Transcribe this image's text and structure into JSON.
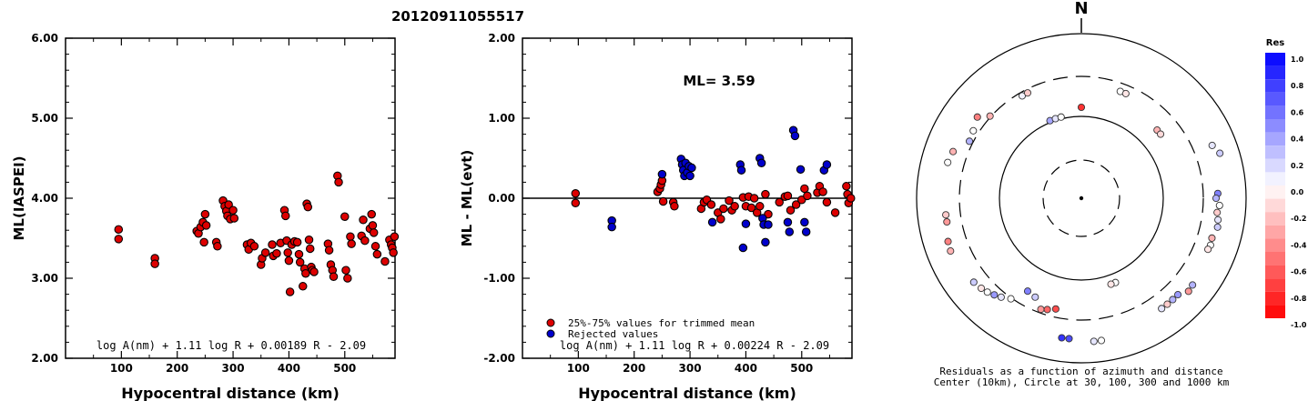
{
  "title": "20120911055517",
  "chart_data": [
    {
      "type": "scatter",
      "xlabel": "Hypocentral distance (km)",
      "ylabel": "ML(IASPEI)",
      "xlim": [
        0,
        590
      ],
      "ylim": [
        2.0,
        6.0
      ],
      "xticks": [
        "100",
        "200",
        "300",
        "400",
        "500"
      ],
      "yticks": [
        "2.00",
        "3.00",
        "4.00",
        "5.00",
        "6.00"
      ],
      "formula": "log A(nm) + 1.11 log R + 0.00189 R - 2.09",
      "series": [
        {
          "color": "#dd0000",
          "points": [
            [
              95,
              3.61
            ],
            [
              95,
              3.49
            ],
            [
              160,
              3.25
            ],
            [
              160,
              3.18
            ],
            [
              235,
              3.59
            ],
            [
              238,
              3.56
            ],
            [
              242,
              3.64
            ],
            [
              246,
              3.7
            ],
            [
              248,
              3.45
            ],
            [
              250,
              3.8
            ],
            [
              252,
              3.66
            ],
            [
              270,
              3.45
            ],
            [
              272,
              3.4
            ],
            [
              282,
              3.97
            ],
            [
              285,
              3.9
            ],
            [
              288,
              3.84
            ],
            [
              290,
              3.78
            ],
            [
              292,
              3.92
            ],
            [
              295,
              3.74
            ],
            [
              300,
              3.85
            ],
            [
              302,
              3.75
            ],
            [
              325,
              3.42
            ],
            [
              328,
              3.36
            ],
            [
              332,
              3.44
            ],
            [
              338,
              3.4
            ],
            [
              350,
              3.17
            ],
            [
              352,
              3.25
            ],
            [
              358,
              3.32
            ],
            [
              370,
              3.42
            ],
            [
              372,
              3.28
            ],
            [
              378,
              3.31
            ],
            [
              385,
              3.44
            ],
            [
              392,
              3.85
            ],
            [
              394,
              3.78
            ],
            [
              396,
              3.47
            ],
            [
              398,
              3.32
            ],
            [
              400,
              3.22
            ],
            [
              402,
              2.83
            ],
            [
              405,
              3.42
            ],
            [
              410,
              3.46
            ],
            [
              415,
              3.45
            ],
            [
              418,
              3.3
            ],
            [
              420,
              3.2
            ],
            [
              425,
              2.9
            ],
            [
              428,
              3.12
            ],
            [
              430,
              3.06
            ],
            [
              432,
              3.93
            ],
            [
              434,
              3.89
            ],
            [
              436,
              3.48
            ],
            [
              438,
              3.37
            ],
            [
              440,
              3.14
            ],
            [
              442,
              3.1
            ],
            [
              445,
              3.08
            ],
            [
              470,
              3.43
            ],
            [
              472,
              3.35
            ],
            [
              475,
              3.17
            ],
            [
              478,
              3.1
            ],
            [
              480,
              3.02
            ],
            [
              487,
              4.28
            ],
            [
              489,
              4.2
            ],
            [
              500,
              3.77
            ],
            [
              502,
              3.1
            ],
            [
              505,
              3.0
            ],
            [
              510,
              3.52
            ],
            [
              512,
              3.43
            ],
            [
              530,
              3.53
            ],
            [
              533,
              3.73
            ],
            [
              536,
              3.47
            ],
            [
              545,
              3.62
            ],
            [
              548,
              3.8
            ],
            [
              550,
              3.66
            ],
            [
              552,
              3.57
            ],
            [
              555,
              3.4
            ],
            [
              558,
              3.3
            ],
            [
              572,
              3.21
            ],
            [
              580,
              3.48
            ],
            [
              583,
              3.42
            ],
            [
              585,
              3.38
            ],
            [
              587,
              3.32
            ],
            [
              589,
              3.52
            ]
          ]
        }
      ]
    },
    {
      "type": "scatter",
      "xlabel": "Hypocentral distance (km)",
      "ylabel": "ML - ML(evt)",
      "xlim": [
        0,
        590
      ],
      "ylim": [
        -2.0,
        2.0
      ],
      "xticks": [
        "100",
        "200",
        "300",
        "400",
        "500"
      ],
      "yticks": [
        "-2.00",
        "-1.00",
        "0.00",
        "1.00",
        "2.00"
      ],
      "annotation": "ML=  3.59",
      "legend": [
        "25%-75% values for trimmed mean",
        "Rejected values"
      ],
      "formula": "log A(nm) + 1.11 log R + 0.00224 R - 2.09",
      "series": [
        {
          "name": "25%-75% values for trimmed mean",
          "color": "#dd0000",
          "points": [
            [
              95,
              0.06
            ],
            [
              95,
              -0.06
            ],
            [
              242,
              0.08
            ],
            [
              246,
              0.12
            ],
            [
              248,
              0.17
            ],
            [
              250,
              0.22
            ],
            [
              252,
              -0.04
            ],
            [
              270,
              -0.05
            ],
            [
              272,
              -0.1
            ],
            [
              320,
              -0.13
            ],
            [
              325,
              -0.05
            ],
            [
              330,
              -0.02
            ],
            [
              338,
              -0.08
            ],
            [
              350,
              -0.18
            ],
            [
              355,
              -0.26
            ],
            [
              360,
              -0.13
            ],
            [
              370,
              -0.03
            ],
            [
              375,
              -0.15
            ],
            [
              380,
              -0.1
            ],
            [
              395,
              0.01
            ],
            [
              400,
              -0.1
            ],
            [
              405,
              0.02
            ],
            [
              410,
              -0.12
            ],
            [
              415,
              0.0
            ],
            [
              420,
              -0.18
            ],
            [
              425,
              -0.1
            ],
            [
              435,
              0.05
            ],
            [
              440,
              -0.2
            ],
            [
              460,
              -0.05
            ],
            [
              470,
              0.02
            ],
            [
              475,
              0.03
            ],
            [
              480,
              -0.15
            ],
            [
              490,
              -0.08
            ],
            [
              500,
              -0.02
            ],
            [
              505,
              0.12
            ],
            [
              510,
              0.03
            ],
            [
              528,
              0.07
            ],
            [
              532,
              0.15
            ],
            [
              538,
              0.08
            ],
            [
              545,
              -0.05
            ],
            [
              560,
              -0.18
            ],
            [
              580,
              0.15
            ],
            [
              582,
              0.05
            ],
            [
              584,
              -0.06
            ],
            [
              588,
              0.0
            ]
          ]
        },
        {
          "name": "Rejected values",
          "color": "#0000cc",
          "points": [
            [
              160,
              -0.28
            ],
            [
              160,
              -0.36
            ],
            [
              250,
              0.3
            ],
            [
              284,
              0.49
            ],
            [
              286,
              0.42
            ],
            [
              288,
              0.35
            ],
            [
              290,
              0.28
            ],
            [
              292,
              0.44
            ],
            [
              295,
              0.32
            ],
            [
              298,
              0.4
            ],
            [
              300,
              0.28
            ],
            [
              303,
              0.38
            ],
            [
              340,
              -0.3
            ],
            [
              390,
              0.42
            ],
            [
              392,
              0.35
            ],
            [
              395,
              -0.62
            ],
            [
              400,
              -0.32
            ],
            [
              425,
              0.5
            ],
            [
              428,
              0.44
            ],
            [
              430,
              -0.25
            ],
            [
              432,
              -0.33
            ],
            [
              435,
              -0.55
            ],
            [
              440,
              -0.33
            ],
            [
              475,
              -0.3
            ],
            [
              478,
              -0.42
            ],
            [
              485,
              0.85
            ],
            [
              488,
              0.78
            ],
            [
              498,
              0.36
            ],
            [
              505,
              -0.3
            ],
            [
              508,
              -0.42
            ],
            [
              540,
              0.35
            ],
            [
              545,
              0.42
            ]
          ]
        }
      ]
    },
    {
      "type": "scatter",
      "polar": true,
      "north_label": "N",
      "caption": [
        "Residuals as a function of azimuth and distance",
        "Center (10km), Circle at 30, 100, 300 and 1000 km"
      ],
      "colorbar": {
        "title": "Res",
        "ticks": [
          "1.0",
          "0.8",
          "0.6",
          "0.4",
          "0.2",
          "0.0",
          "-0.2",
          "-0.4",
          "-0.6",
          "-0.8",
          "-1.0"
        ],
        "max_color": "#0000ff",
        "zero_color": "#ffffff",
        "min_color": "#ff0000"
      },
      "points": [
        {
          "az": -22,
          "d": 92,
          "res": 0.35
        },
        {
          "az": -18,
          "d": 92,
          "res": 0.1
        },
        {
          "az": -14,
          "d": 92,
          "res": 0.0
        },
        {
          "az": 0,
          "d": 100,
          "res": -0.8
        },
        {
          "az": 20,
          "d": 125,
          "res": 0.0
        },
        {
          "az": 23,
          "d": 125,
          "res": -0.1
        },
        {
          "az": 48,
          "d": 112,
          "res": -0.3
        },
        {
          "az": 51,
          "d": 112,
          "res": -0.15
        },
        {
          "az": -30,
          "d": 130,
          "res": 0.05
        },
        {
          "az": -27,
          "d": 130,
          "res": -0.2
        },
        {
          "az": -48,
          "d": 135,
          "res": -0.3
        },
        {
          "az": -52,
          "d": 145,
          "res": -0.5
        },
        {
          "az": -58,
          "d": 140,
          "res": 0.0
        },
        {
          "az": -63,
          "d": 138,
          "res": 0.3
        },
        {
          "az": 68,
          "d": 155,
          "res": 0.1
        },
        {
          "az": 72,
          "d": 160,
          "res": 0.2
        },
        {
          "az": 88,
          "d": 150,
          "res": 0.5
        },
        {
          "az": 90,
          "d": 148,
          "res": 0.3
        },
        {
          "az": 93,
          "d": 152,
          "res": 0.0
        },
        {
          "az": 96,
          "d": 150,
          "res": -0.2
        },
        {
          "az": 99,
          "d": 152,
          "res": 0.1
        },
        {
          "az": 102,
          "d": 153,
          "res": 0.2
        },
        {
          "az": 107,
          "d": 150,
          "res": -0.3
        },
        {
          "az": 110,
          "d": 151,
          "res": 0.0
        },
        {
          "az": 112,
          "d": 150,
          "res": -0.1
        },
        {
          "az": -100,
          "d": 150,
          "res": -0.4
        },
        {
          "az": -97,
          "d": 150,
          "res": -0.2
        },
        {
          "az": -112,
          "d": 155,
          "res": -0.3
        },
        {
          "az": -108,
          "d": 154,
          "res": -0.5
        },
        {
          "az": -128,
          "d": 150,
          "res": 0.2
        },
        {
          "az": -132,
          "d": 148,
          "res": -0.1
        },
        {
          "az": -135,
          "d": 146,
          "res": 0.0
        },
        {
          "az": -138,
          "d": 143,
          "res": 0.4
        },
        {
          "az": -141,
          "d": 140,
          "res": 0.1
        },
        {
          "az": -145,
          "d": 135,
          "res": 0.0
        },
        {
          "az": -150,
          "d": 118,
          "res": 0.5
        },
        {
          "az": -155,
          "d": 120,
          "res": 0.2
        },
        {
          "az": -160,
          "d": 130,
          "res": -0.4
        },
        {
          "az": -163,
          "d": 128,
          "res": -0.6
        },
        {
          "az": -167,
          "d": 125,
          "res": -0.7
        },
        {
          "az": 158,
          "d": 100,
          "res": 0.0
        },
        {
          "az": 161,
          "d": 100,
          "res": -0.1
        },
        {
          "az": 172,
          "d": 158,
          "res": 0.0
        },
        {
          "az": 175,
          "d": 158,
          "res": 0.1
        },
        {
          "az": -172,
          "d": 155,
          "res": 0.8
        },
        {
          "az": -175,
          "d": 155,
          "res": 0.7
        },
        {
          "az": 135,
          "d": 150,
          "res": 0.4
        },
        {
          "az": 138,
          "d": 150,
          "res": 0.3
        },
        {
          "az": 141,
          "d": 150,
          "res": -0.2
        },
        {
          "az": 144,
          "d": 150,
          "res": 0.1
        },
        {
          "az": 128,
          "d": 155,
          "res": 0.3
        },
        {
          "az": 131,
          "d": 156,
          "res": -0.4
        },
        {
          "az": -70,
          "d": 150,
          "res": -0.3
        },
        {
          "az": -75,
          "d": 152,
          "res": 0.0
        }
      ]
    }
  ]
}
